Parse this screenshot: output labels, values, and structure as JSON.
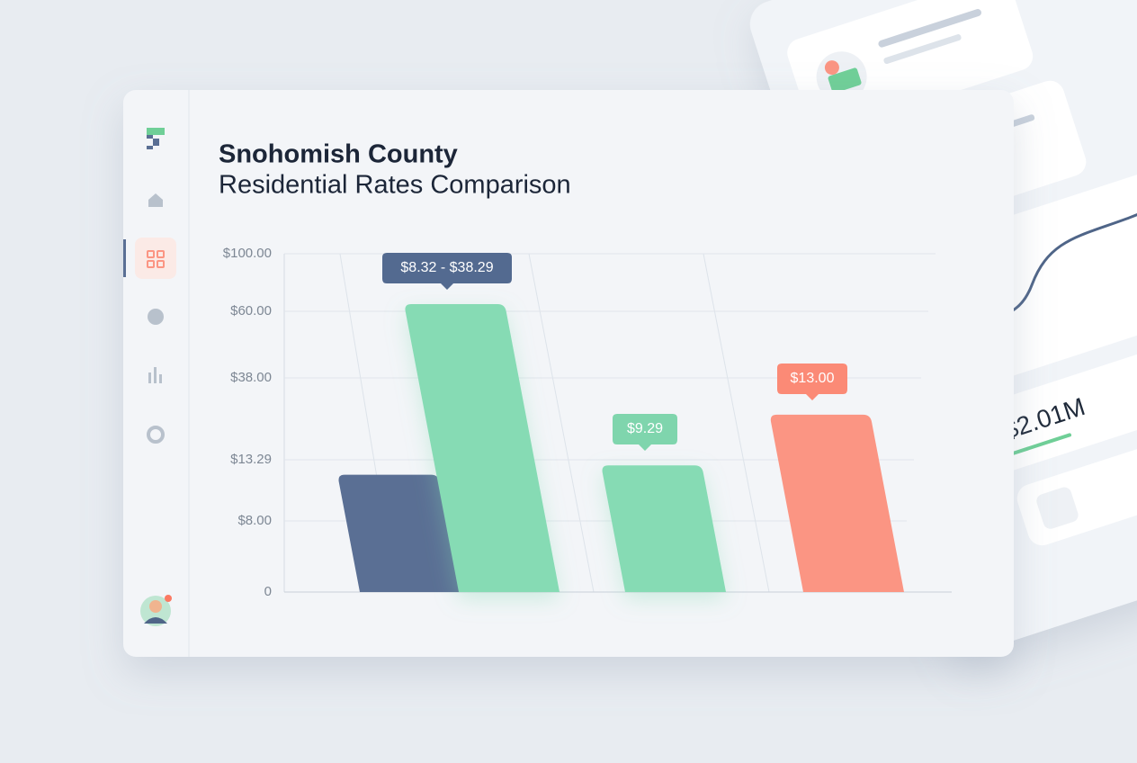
{
  "header": {
    "title": "Snohomish County",
    "subtitle": "Residential Rates Comparison"
  },
  "chart_data": {
    "type": "bar",
    "categories": [
      null,
      null,
      null,
      null
    ],
    "values": [
      12,
      65,
      12.8,
      26.9
    ],
    "colors": [
      "#5a6f94",
      "#86dbb4",
      "#86dbb4",
      "#fb9583"
    ],
    "ylim": [
      0,
      100
    ],
    "yticks": [
      0,
      {
        "value": 8,
        "label": "$8.00"
      },
      {
        "value": 13.29,
        "label": "$13.29"
      },
      {
        "value": 38,
        "label": "$38.00"
      },
      {
        "value": 60,
        "label": "$60.00"
      },
      {
        "value": 100,
        "label": "$100.00"
      }
    ],
    "grid": true,
    "annotations": [
      "$8.32 - $38.29",
      "$9.29",
      "$13.00"
    ]
  },
  "side_panel": {
    "kpi": "$2.01M"
  }
}
